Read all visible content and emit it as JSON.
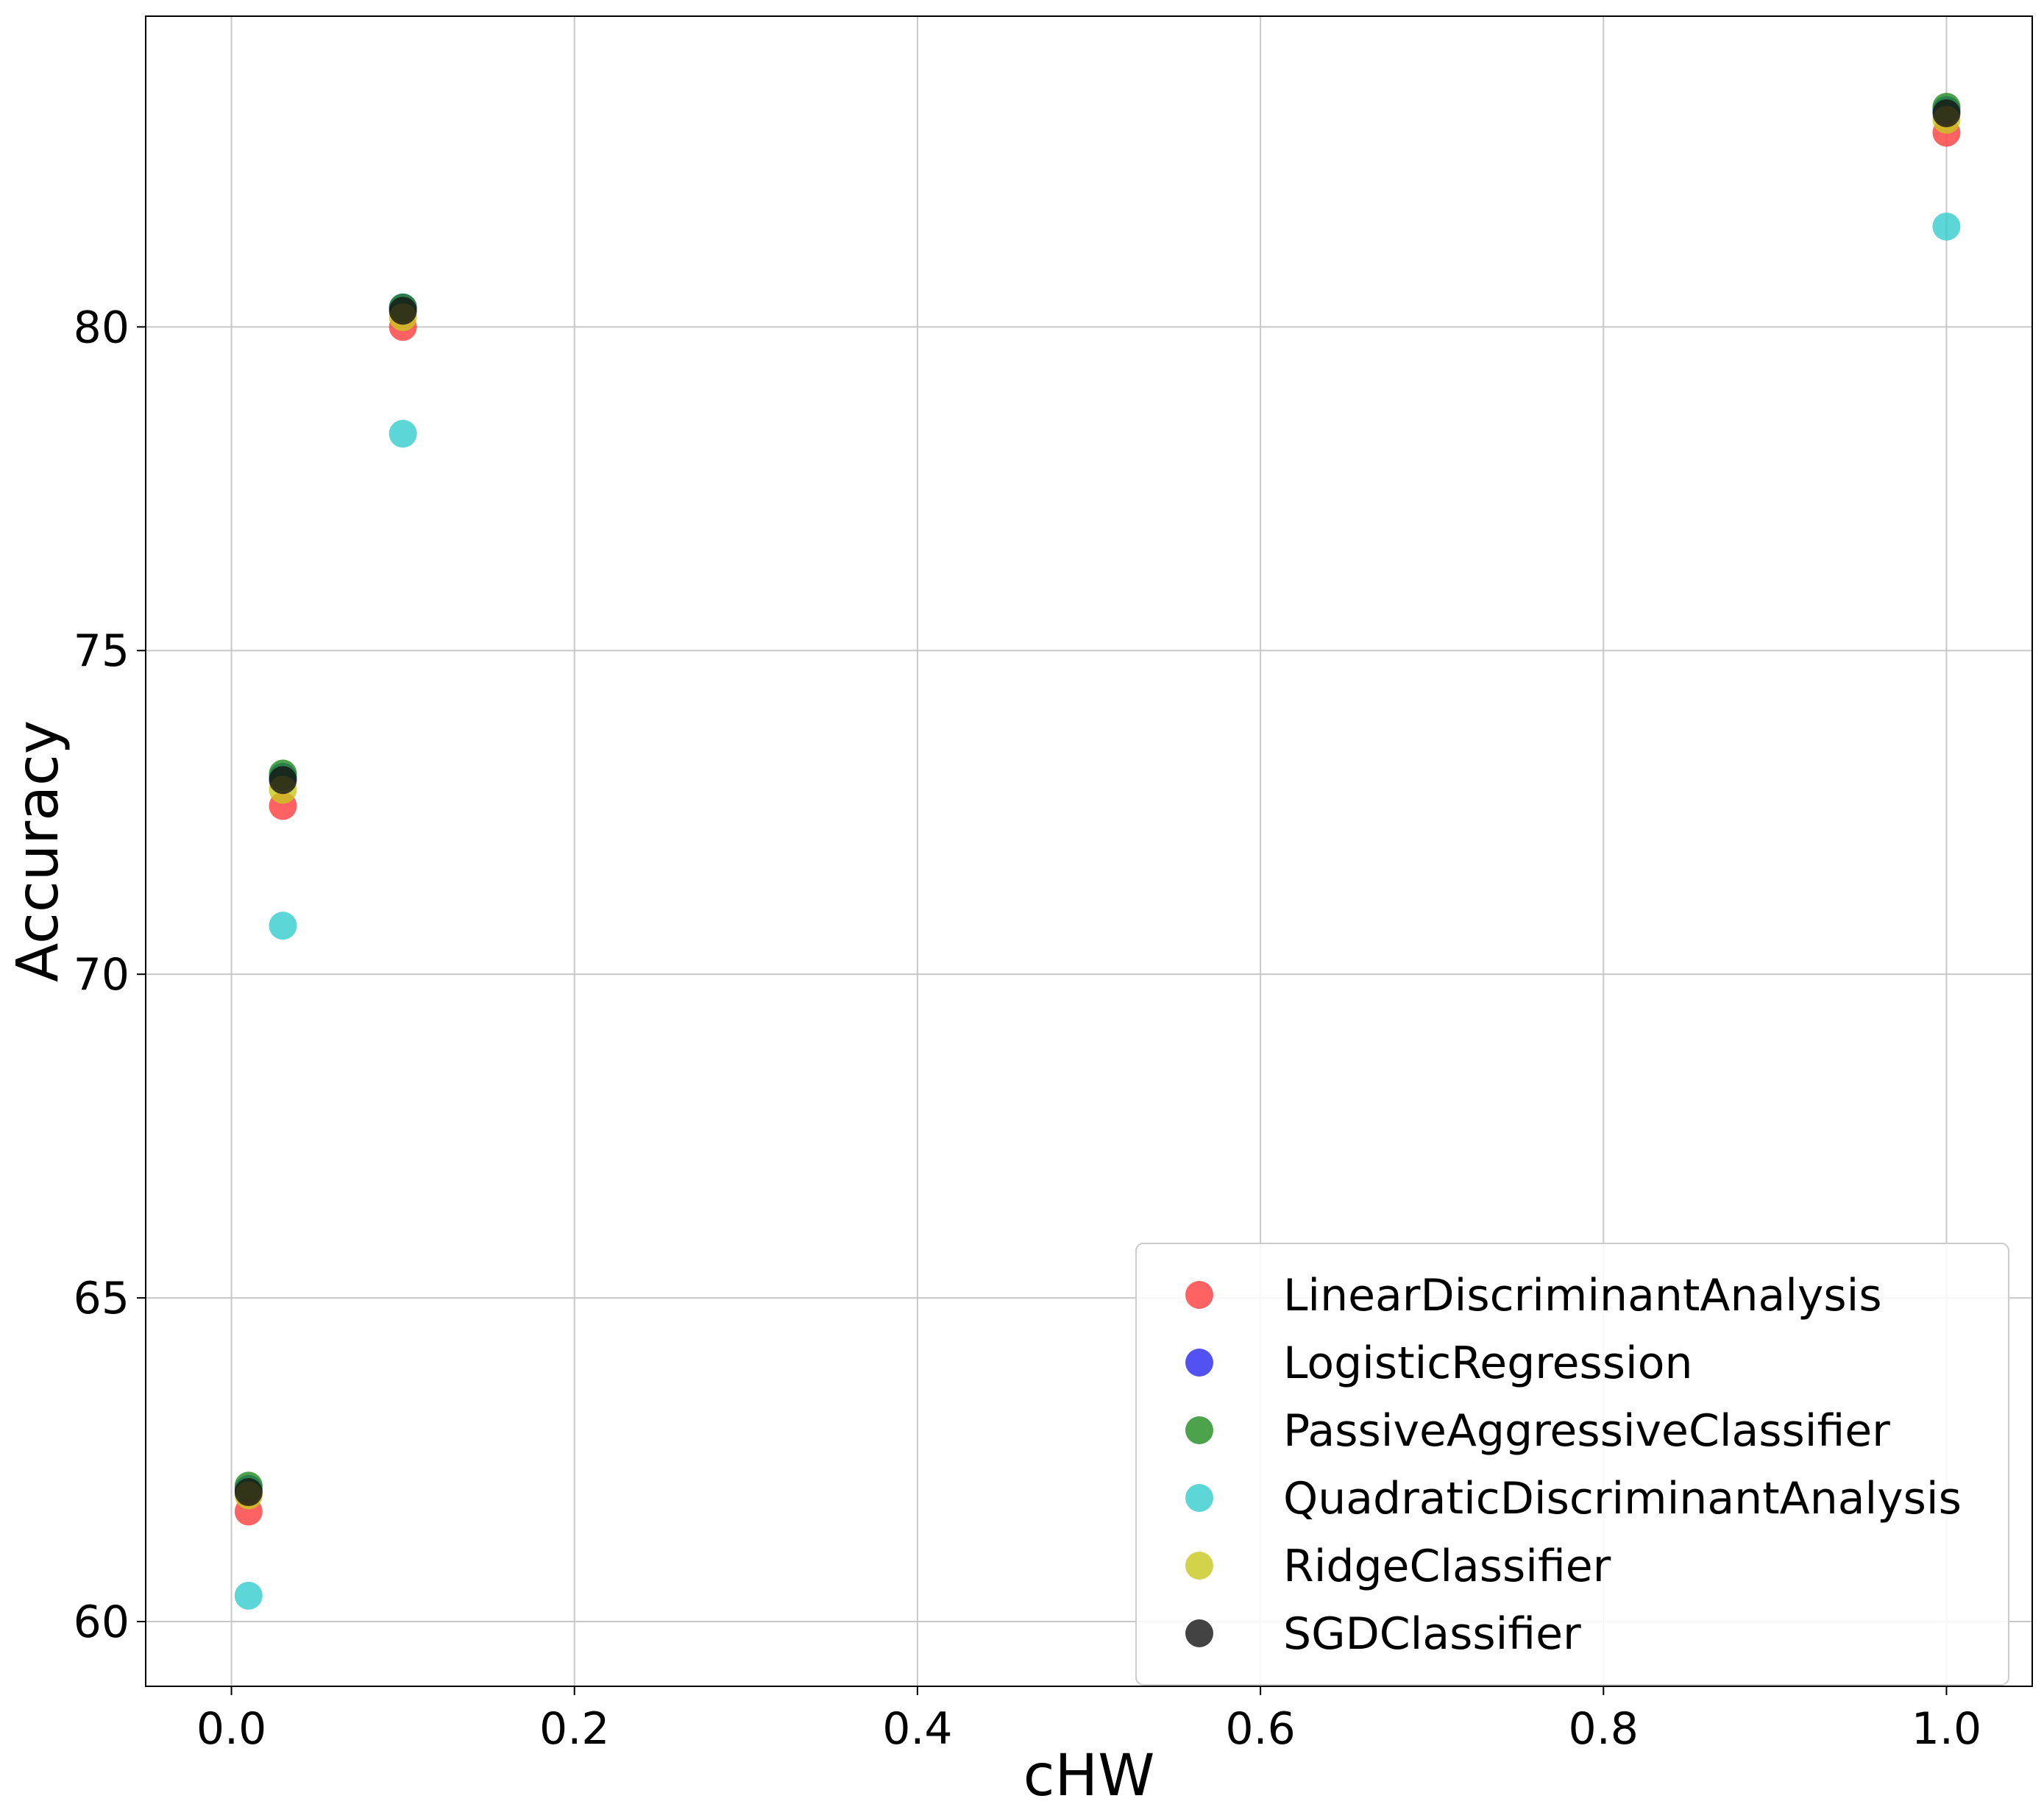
{
  "chart_data": {
    "type": "scatter",
    "title": "",
    "xlabel": "cHW",
    "ylabel": "Accuracy",
    "xlim": [
      -0.05,
      1.05
    ],
    "ylim": [
      59.0,
      84.8
    ],
    "xticks": [
      0.0,
      0.2,
      0.4,
      0.6,
      0.8,
      1.0
    ],
    "xtick_labels": [
      "0.0",
      "0.2",
      "0.4",
      "0.6",
      "0.8",
      "1.0"
    ],
    "yticks": [
      60,
      65,
      70,
      75,
      80
    ],
    "ytick_labels": [
      "60",
      "65",
      "70",
      "75",
      "80"
    ],
    "grid": true,
    "legend_position": "lower-right",
    "x": [
      0.01,
      0.03,
      0.1,
      1.0
    ],
    "series": [
      {
        "name": "LinearDiscriminantAnalysis",
        "color": "#ff3b3b",
        "values": [
          61.7,
          72.6,
          80.0,
          83.0
        ]
      },
      {
        "name": "LogisticRegression",
        "color": "#2727f0",
        "values": [
          62.05,
          73.05,
          80.3,
          83.35
        ]
      },
      {
        "name": "PassiveAggressiveClassifier",
        "color": "#1f8c1f",
        "values": [
          62.1,
          73.1,
          80.3,
          83.4
        ]
      },
      {
        "name": "QuadraticDiscriminantAnalysis",
        "color": "#33cccc",
        "values": [
          60.4,
          70.75,
          78.35,
          81.55
        ]
      },
      {
        "name": "RidgeClassifier",
        "color": "#c8c81e",
        "values": [
          61.95,
          72.85,
          80.15,
          83.2
        ]
      },
      {
        "name": "SGDClassifier",
        "color": "#141414",
        "values": [
          62.0,
          73.0,
          80.25,
          83.3
        ]
      }
    ]
  }
}
